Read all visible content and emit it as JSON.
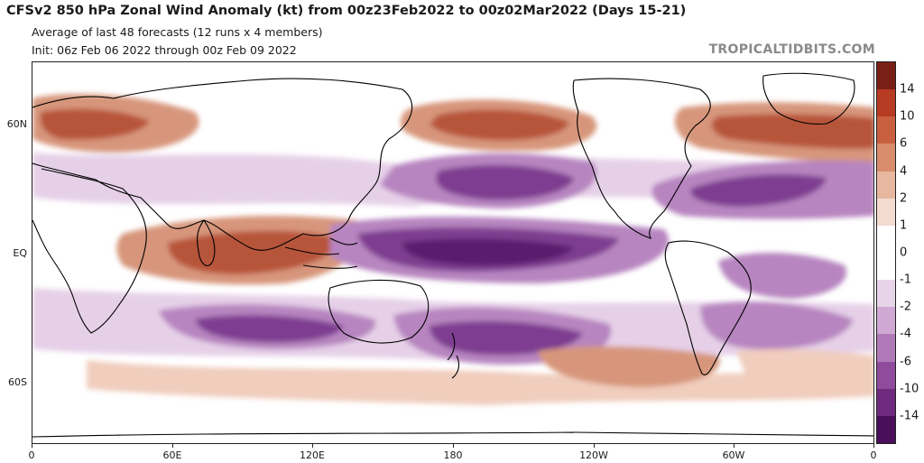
{
  "header": {
    "title": "CFSv2 850 hPa Zonal Wind Anomaly (kt) from 00z23Feb2022 to 00z02Mar2022 (Days 15-21)",
    "subtitle1": "Average of last 48 forecasts (12 runs x 4 members)",
    "subtitle2": "Init: 06z Feb 06 2022 through 00z Feb 09 2022",
    "watermark": "TROPICALTIDBITS.COM"
  },
  "map": {
    "lat_labels": [
      "60N",
      "EQ",
      "60S"
    ],
    "lon_labels": [
      "0",
      "60E",
      "120E",
      "180",
      "120W",
      "60W",
      "0"
    ]
  },
  "colorbar": {
    "labels": [
      "14",
      "10",
      "6",
      "4",
      "2",
      "1",
      "0",
      "-1",
      "-2",
      "-4",
      "-6",
      "-10",
      "-14"
    ],
    "colors": [
      "#7a1f16",
      "#b73a23",
      "#c8603f",
      "#d98c6c",
      "#e7b7a0",
      "#f3dbd0",
      "#ffffff",
      "#ffffff",
      "#e8d4e8",
      "#cfa8d3",
      "#b07ab8",
      "#8f4c9c",
      "#6e2a7f",
      "#4a0f5a"
    ]
  },
  "colors": {
    "westerly_strong": "#b7543a",
    "westerly_mid": "#d7967b",
    "westerly_weak": "#f0cdbd",
    "easterly_weak": "#e6d0e8",
    "easterly_mid": "#b785c0",
    "easterly_strong": "#7e3e90",
    "coastline": "#000000"
  }
}
